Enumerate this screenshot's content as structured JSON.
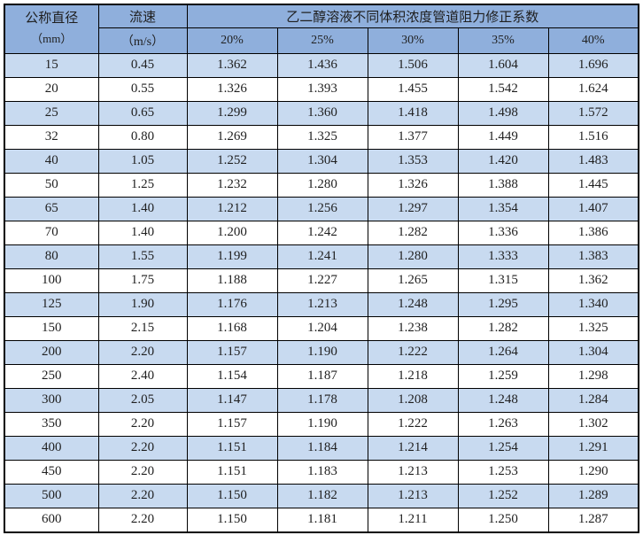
{
  "table": {
    "header": {
      "diameter_label": "公称直径",
      "diameter_unit": "（mm）",
      "velocity_label": "流速",
      "velocity_unit": "（m/s）",
      "span_title": "乙二醇溶液不同体积浓度管道阻力修正系数",
      "concentrations": [
        "20%",
        "25%",
        "30%",
        "35%",
        "40%"
      ]
    },
    "colors": {
      "header_bg": "#8FAFDC",
      "stripe_bg": "#C8DAF0",
      "row_bg": "#FFFFFF",
      "border": "#000000",
      "text": "#1F1F1F"
    },
    "rows": [
      [
        "15",
        "0.45",
        "1.362",
        "1.436",
        "1.506",
        "1.604",
        "1.696"
      ],
      [
        "20",
        "0.55",
        "1.326",
        "1.393",
        "1.455",
        "1.542",
        "1.624"
      ],
      [
        "25",
        "0.65",
        "1.299",
        "1.360",
        "1.418",
        "1.498",
        "1.572"
      ],
      [
        "32",
        "0.80",
        "1.269",
        "1.325",
        "1.377",
        "1.449",
        "1.516"
      ],
      [
        "40",
        "1.05",
        "1.252",
        "1.304",
        "1.353",
        "1.420",
        "1.483"
      ],
      [
        "50",
        "1.25",
        "1.232",
        "1.280",
        "1.326",
        "1.388",
        "1.445"
      ],
      [
        "65",
        "1.40",
        "1.212",
        "1.256",
        "1.297",
        "1.354",
        "1.407"
      ],
      [
        "70",
        "1.40",
        "1.200",
        "1.242",
        "1.282",
        "1.336",
        "1.386"
      ],
      [
        "80",
        "1.55",
        "1.199",
        "1.241",
        "1.280",
        "1.333",
        "1.383"
      ],
      [
        "100",
        "1.75",
        "1.188",
        "1.227",
        "1.265",
        "1.315",
        "1.362"
      ],
      [
        "125",
        "1.90",
        "1.176",
        "1.213",
        "1.248",
        "1.295",
        "1.340"
      ],
      [
        "150",
        "2.15",
        "1.168",
        "1.204",
        "1.238",
        "1.282",
        "1.325"
      ],
      [
        "200",
        "2.20",
        "1.157",
        "1.190",
        "1.222",
        "1.264",
        "1.304"
      ],
      [
        "250",
        "2.40",
        "1.154",
        "1.187",
        "1.218",
        "1.259",
        "1.298"
      ],
      [
        "300",
        "2.05",
        "1.147",
        "1.178",
        "1.208",
        "1.248",
        "1.284"
      ],
      [
        "350",
        "2.20",
        "1.157",
        "1.190",
        "1.222",
        "1.263",
        "1.302"
      ],
      [
        "400",
        "2.20",
        "1.151",
        "1.184",
        "1.214",
        "1.254",
        "1.291"
      ],
      [
        "450",
        "2.20",
        "1.151",
        "1.183",
        "1.213",
        "1.253",
        "1.290"
      ],
      [
        "500",
        "2.20",
        "1.150",
        "1.182",
        "1.213",
        "1.252",
        "1.289"
      ],
      [
        "600",
        "2.20",
        "1.150",
        "1.181",
        "1.211",
        "1.250",
        "1.287"
      ]
    ]
  }
}
